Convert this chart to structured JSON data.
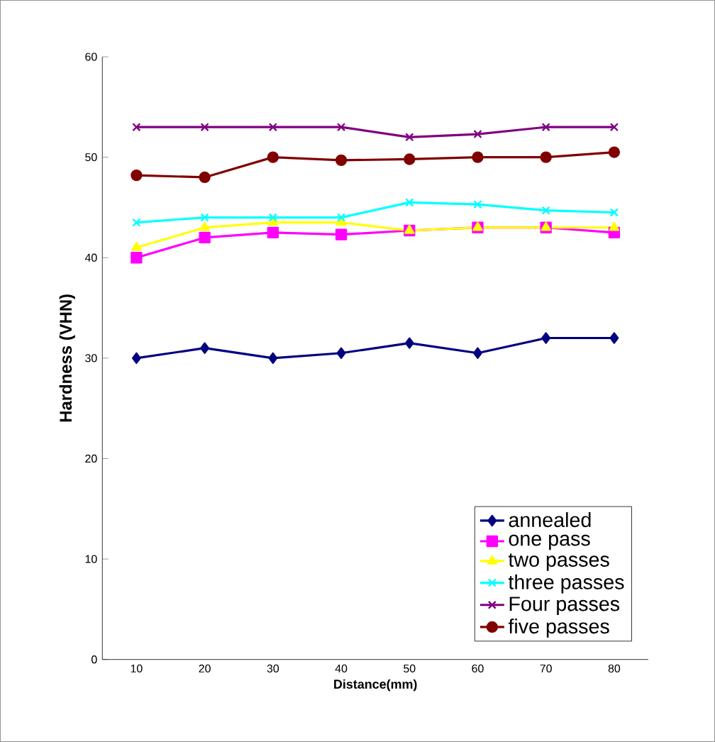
{
  "chart_data": {
    "type": "line",
    "xlabel": "Distance(mm)",
    "ylabel": "Hardness (VHN)",
    "categories": [
      "10",
      "20",
      "30",
      "40",
      "50",
      "60",
      "70",
      "80"
    ],
    "ylim": [
      0,
      60
    ],
    "yticks": [
      0,
      10,
      20,
      30,
      40,
      50,
      60
    ],
    "legend": "bottom right",
    "grid": false,
    "series": [
      {
        "name": "annealed",
        "color": "#000080",
        "marker": "diamond",
        "values": [
          30,
          31,
          30,
          30.5,
          31.5,
          30.5,
          32,
          32
        ]
      },
      {
        "name": "one pass",
        "color": "#ff00ff",
        "marker": "square",
        "values": [
          40,
          42,
          42.5,
          42.3,
          42.7,
          43,
          43,
          42.5
        ]
      },
      {
        "name": "two passes",
        "color": "#ffff00",
        "marker": "triangle",
        "values": [
          41,
          43,
          43.5,
          43.5,
          42.7,
          43,
          43,
          43
        ]
      },
      {
        "name": "three passes",
        "color": "#00ffff",
        "marker": "cross",
        "values": [
          43.5,
          44,
          44,
          44,
          45.5,
          45.3,
          44.7,
          44.5
        ]
      },
      {
        "name": "Four passes",
        "color": "#800080",
        "marker": "cross",
        "values": [
          53,
          53,
          53,
          53,
          52,
          52.3,
          53,
          53
        ]
      },
      {
        "name": "five passes",
        "color": "#800000",
        "marker": "circle",
        "values": [
          48.2,
          48,
          50,
          49.7,
          49.8,
          50,
          50,
          50.5
        ]
      }
    ]
  }
}
